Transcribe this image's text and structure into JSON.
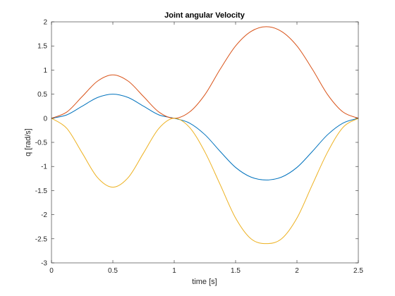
{
  "chart_data": {
    "type": "line",
    "title": "Joint angular Velocity",
    "xlabel": "time [s]",
    "ylabel": "q [rad/s]",
    "xlim": [
      0,
      2.5
    ],
    "ylim": [
      -3,
      2
    ],
    "xticks": [
      0,
      0.5,
      1,
      1.5,
      2,
      2.5
    ],
    "xtick_labels": [
      "0",
      "0.5",
      "1",
      "1.5",
      "2",
      "2.5"
    ],
    "yticks": [
      -3,
      -2.5,
      -2,
      -1.5,
      -1,
      -0.5,
      0,
      0.5,
      1,
      1.5,
      2
    ],
    "ytick_labels": [
      "-3",
      "-2.5",
      "-2",
      "-1.5",
      "-1",
      "-0.5",
      "0",
      "0.5",
      "1",
      "1.5",
      "2"
    ],
    "grid": false,
    "x": [
      0,
      0.125,
      0.25,
      0.375,
      0.5,
      0.625,
      0.75,
      0.875,
      1.0,
      1.125,
      1.25,
      1.375,
      1.5,
      1.625,
      1.75,
      1.875,
      2.0,
      2.125,
      2.25,
      2.375,
      2.5
    ],
    "series": [
      {
        "color": "#0072BD",
        "values": [
          0,
          0.07,
          0.25,
          0.43,
          0.5,
          0.43,
          0.25,
          0.07,
          0,
          -0.1,
          -0.34,
          -0.69,
          -1.02,
          -1.22,
          -1.28,
          -1.22,
          -1.02,
          -0.69,
          -0.34,
          -0.1,
          0
        ]
      },
      {
        "color": "#D95319",
        "values": [
          0,
          0.13,
          0.45,
          0.77,
          0.9,
          0.77,
          0.45,
          0.13,
          0,
          0.13,
          0.49,
          1.02,
          1.5,
          1.8,
          1.9,
          1.8,
          1.5,
          1.02,
          0.49,
          0.13,
          0
        ]
      },
      {
        "color": "#EDB120",
        "values": [
          0,
          -0.21,
          -0.72,
          -1.23,
          -1.43,
          -1.23,
          -0.72,
          -0.21,
          0,
          -0.19,
          -0.7,
          -1.38,
          -2.07,
          -2.5,
          -2.6,
          -2.5,
          -2.07,
          -1.38,
          -0.7,
          -0.19,
          0
        ]
      }
    ]
  }
}
